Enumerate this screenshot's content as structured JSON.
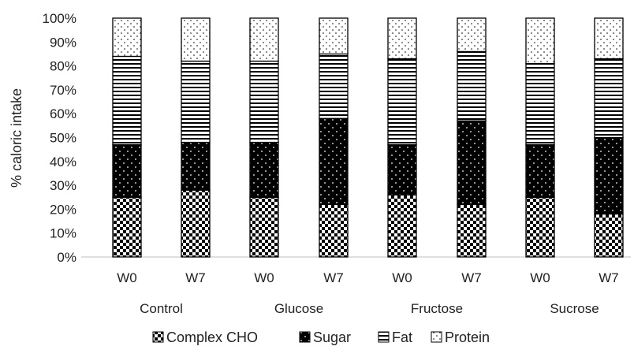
{
  "chart_data": {
    "type": "bar",
    "stacked": true,
    "percent": true,
    "ylabel": "% caloric intake",
    "ylim": [
      0,
      100
    ],
    "yticks": [
      "0%",
      "10%",
      "20%",
      "30%",
      "40%",
      "50%",
      "60%",
      "70%",
      "80%",
      "90%",
      "100%"
    ],
    "categories": [
      "W0",
      "W7",
      "W0",
      "W7",
      "W0",
      "W7",
      "W0",
      "W7"
    ],
    "groups": [
      "Control",
      "Glucose",
      "Fructose",
      "Sucrose"
    ],
    "series": [
      {
        "name": "Complex CHO",
        "values": [
          25,
          28,
          25,
          22,
          26,
          22,
          25,
          18
        ],
        "pattern": "checker"
      },
      {
        "name": "Sugar",
        "values": [
          22,
          20,
          23,
          36,
          21,
          35,
          22,
          32
        ],
        "pattern": "dots-on-black"
      },
      {
        "name": "Fat",
        "values": [
          37,
          34,
          34,
          27,
          36,
          29,
          34,
          33
        ],
        "pattern": "horizontal-lines"
      },
      {
        "name": "Protein",
        "values": [
          16,
          18,
          18,
          15,
          17,
          14,
          19,
          17
        ],
        "pattern": "sparse-dots"
      }
    ],
    "legend_position": "bottom",
    "grid": false
  }
}
